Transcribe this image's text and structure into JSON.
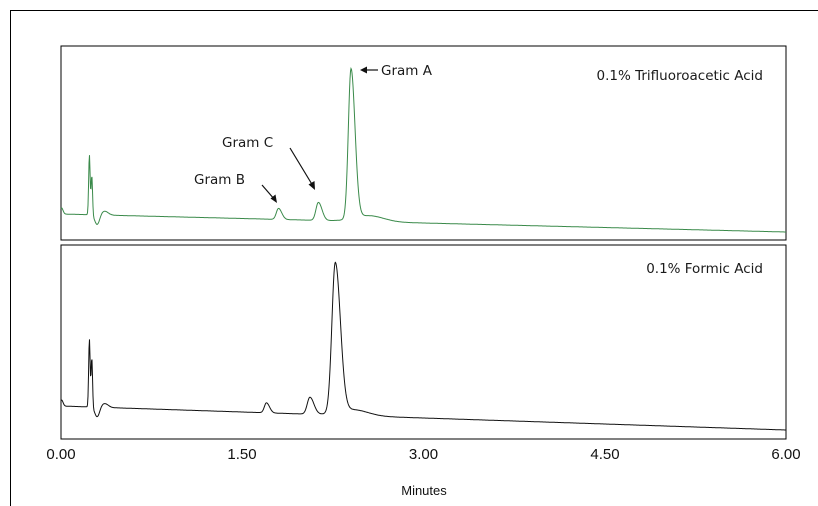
{
  "chart_data": {
    "type": "line",
    "xlabel": "Minutes",
    "xlim": [
      0,
      6
    ],
    "x_ticks": [
      "0.00",
      "1.50",
      "3.00",
      "4.50",
      "6.00"
    ],
    "x_tick_values": [
      0,
      1.5,
      3,
      4.5,
      6
    ],
    "grid": false,
    "panels": [
      {
        "label": "0.1% Trifluoroacetic Acid",
        "color": "#3a8a4a",
        "peaks": [
          {
            "name": "Gram B",
            "x": 1.8
          },
          {
            "name": "Gram C",
            "x": 2.13
          },
          {
            "name": "Gram A",
            "x": 2.4
          }
        ],
        "annotations": [
          "Gram A",
          "Gram C",
          "Gram B"
        ]
      },
      {
        "label": "0.1% Formic Acid",
        "color": "#111111",
        "peaks": [
          {
            "x": 1.7
          },
          {
            "x": 2.06
          },
          {
            "x": 2.27
          }
        ]
      }
    ]
  }
}
